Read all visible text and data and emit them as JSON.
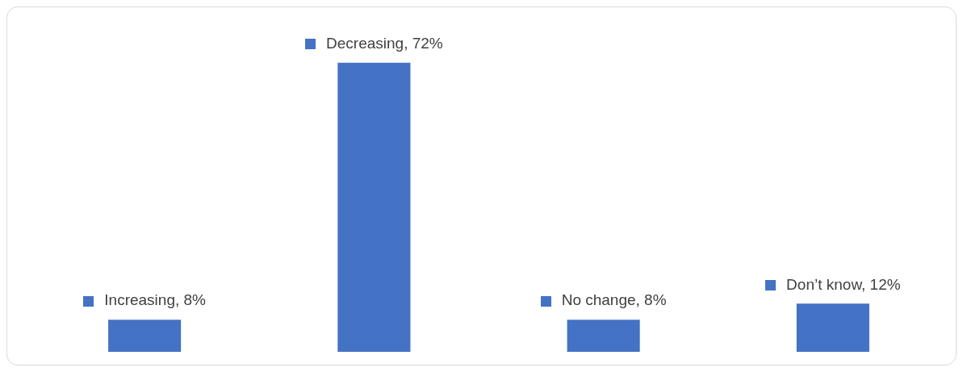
{
  "chart_data": {
    "type": "bar",
    "categories": [
      null,
      null,
      null,
      null
    ],
    "values": [
      8,
      72,
      8,
      12
    ],
    "color": "#4472c4",
    "value_labels": [
      "Increasing, 8%",
      "Decreasing, 72%",
      "No change, 8%",
      "Don’t know, 12%"
    ],
    "tick_labels": false,
    "legend": false
  }
}
